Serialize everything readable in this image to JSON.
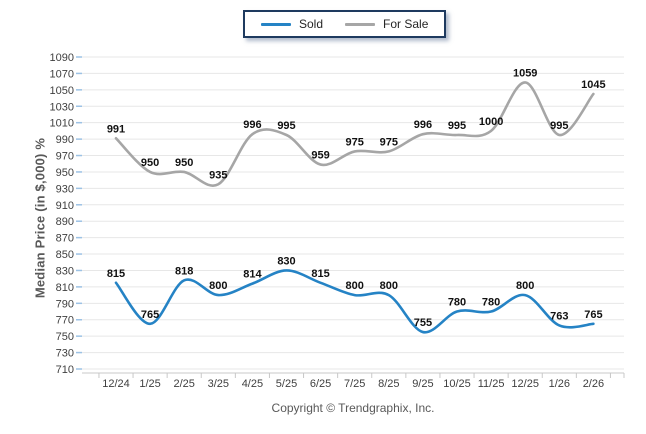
{
  "chart_data": {
    "type": "line",
    "title": "",
    "xlabel": "",
    "ylabel": "Median Price (in $,000) %",
    "categories": [
      "12/24",
      "1/25",
      "2/25",
      "3/25",
      "4/25",
      "5/25",
      "6/25",
      "7/25",
      "8/25",
      "9/25",
      "10/25",
      "11/25",
      "12/25",
      "1/26",
      "2/26"
    ],
    "series": [
      {
        "name": "Sold",
        "color": "#2583C5",
        "values": [
          815,
          765,
          818,
          800,
          814,
          830,
          815,
          800,
          800,
          755,
          780,
          780,
          800,
          763,
          765
        ]
      },
      {
        "name": "For Sale",
        "color": "#A6A6A6",
        "values": [
          991,
          950,
          950,
          935,
          996,
          995,
          959,
          975,
          975,
          996,
          995,
          1000,
          1059,
          995,
          1045
        ]
      }
    ],
    "ylim": [
      710,
      1090
    ],
    "ytick_step": 20,
    "yticks": [
      710,
      730,
      750,
      770,
      790,
      810,
      830,
      850,
      870,
      890,
      910,
      930,
      950,
      970,
      990,
      1010,
      1030,
      1050,
      1070,
      1090
    ],
    "grid": "horizontal",
    "legend_position": "top",
    "line_style": "smooth",
    "data_labels": "above"
  },
  "footer": {
    "copyright": "Copyright © Trendgraphix, Inc."
  },
  "colors": {
    "background": "#FFFFFF",
    "grid": "#E7E7E7",
    "axis_line": "#C8C8C8",
    "y_tick": "#9CC2E5",
    "x_tick": "#C8C8C8",
    "axis_text": "#3F3F3F",
    "data_label": "#111111",
    "ylabel_text": "#595959",
    "legend_border": "#1E3A5F",
    "copyright_text": "#595959"
  }
}
